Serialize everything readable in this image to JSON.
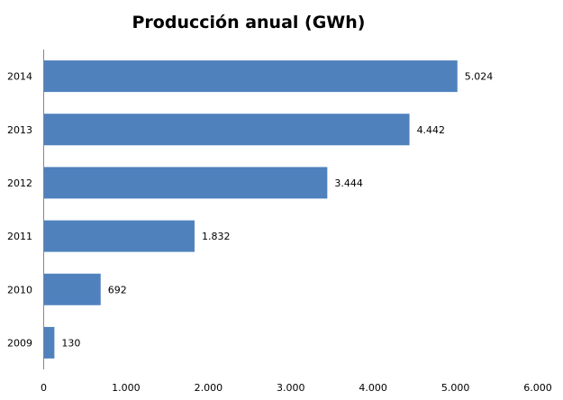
{
  "chart_data": {
    "type": "bar",
    "orientation": "horizontal",
    "title": "Producción anual (GWh)",
    "xlabel": "",
    "ylabel": "",
    "categories": [
      "2009",
      "2010",
      "2011",
      "2012",
      "2013",
      "2014"
    ],
    "values": [
      130,
      692,
      1832,
      3444,
      4442,
      5024
    ],
    "data_labels": [
      "130",
      "692",
      "1.832",
      "3.444",
      "4.442",
      "5.024"
    ],
    "xlim": [
      0,
      6000
    ],
    "x_ticks": [
      0,
      1000,
      2000,
      3000,
      4000,
      5000,
      6000
    ],
    "x_tick_labels": [
      "0",
      "1.000",
      "2.000",
      "3.000",
      "4.000",
      "5.000",
      "6.000"
    ],
    "bar_color": "#4f81bd",
    "grid": false,
    "legend": "none"
  }
}
